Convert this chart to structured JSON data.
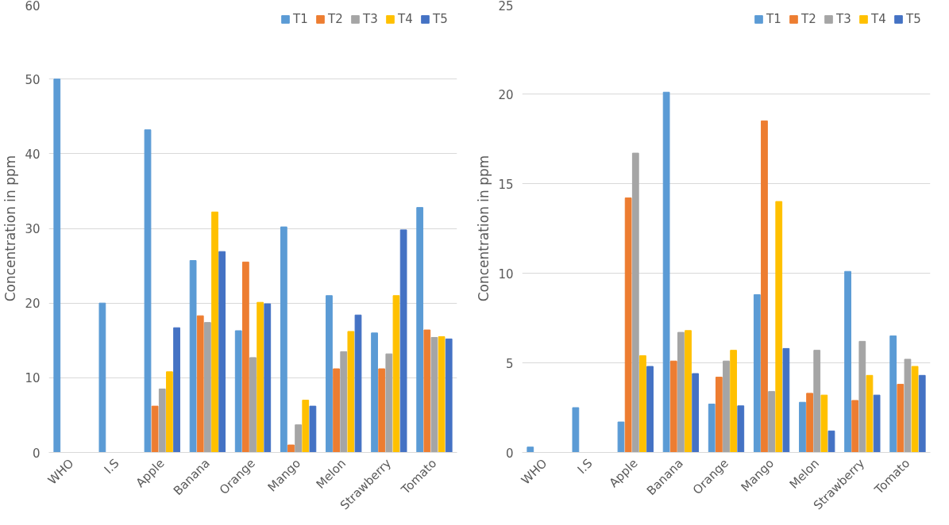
{
  "chart_data": [
    {
      "type": "bar",
      "ylabel": "Concentration in ppm",
      "categories": [
        "WHO",
        "I.S",
        "Apple",
        "Banana",
        "Orange",
        "Mango",
        "Melon",
        "Strawberry",
        "Tomato"
      ],
      "ylim": [
        0,
        60
      ],
      "yticks": [
        0,
        10,
        20,
        30,
        40,
        50,
        60
      ],
      "grid": "y",
      "legend": "top right",
      "series": [
        {
          "name": "T1",
          "color": "#5b9bd5",
          "values": [
            50,
            20,
            43.2,
            25.7,
            16.3,
            30.2,
            21.0,
            16.0,
            32.8
          ]
        },
        {
          "name": "T2",
          "color": "#ed7d31",
          "values": [
            null,
            null,
            6.2,
            18.3,
            25.5,
            1.0,
            11.2,
            11.2,
            16.4
          ]
        },
        {
          "name": "T3",
          "color": "#a5a5a5",
          "values": [
            null,
            null,
            8.5,
            17.4,
            12.7,
            3.7,
            13.5,
            13.2,
            15.4
          ]
        },
        {
          "name": "T4",
          "color": "#ffc000",
          "values": [
            null,
            null,
            10.8,
            32.2,
            20.1,
            7.0,
            16.2,
            21.0,
            15.5
          ]
        },
        {
          "name": "T5",
          "color": "#4472c4",
          "values": [
            null,
            null,
            16.7,
            26.9,
            19.9,
            6.2,
            18.4,
            29.8,
            15.2
          ]
        }
      ]
    },
    {
      "type": "bar",
      "ylabel": "Concentration in ppm",
      "categories": [
        "WHO",
        "I.S",
        "Apple",
        "Banana",
        "Orange",
        "Mango",
        "Melon",
        "Strawberry",
        "Tomato"
      ],
      "ylim": [
        0,
        25
      ],
      "yticks": [
        0,
        5,
        10,
        15,
        20,
        25
      ],
      "grid": "y",
      "legend": "top right",
      "series": [
        {
          "name": "T1",
          "color": "#5b9bd5",
          "values": [
            0.3,
            2.5,
            1.7,
            20.1,
            2.7,
            8.8,
            2.8,
            10.1,
            6.5
          ]
        },
        {
          "name": "T2",
          "color": "#ed7d31",
          "values": [
            null,
            null,
            14.2,
            5.1,
            4.2,
            18.5,
            3.3,
            2.9,
            3.8
          ]
        },
        {
          "name": "T3",
          "color": "#a5a5a5",
          "values": [
            null,
            null,
            16.7,
            6.7,
            5.1,
            3.4,
            5.7,
            6.2,
            5.2
          ]
        },
        {
          "name": "T4",
          "color": "#ffc000",
          "values": [
            null,
            null,
            5.4,
            6.8,
            5.7,
            14.0,
            3.2,
            4.3,
            4.8
          ]
        },
        {
          "name": "T5",
          "color": "#4472c4",
          "values": [
            null,
            null,
            4.8,
            4.4,
            2.6,
            5.8,
            1.2,
            3.2,
            4.3
          ]
        }
      ]
    }
  ]
}
